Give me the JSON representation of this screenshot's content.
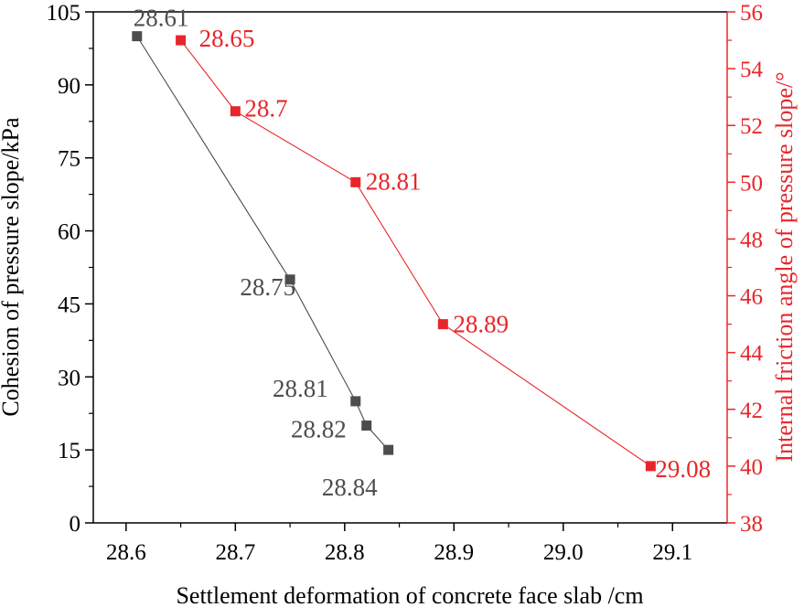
{
  "chart_data": {
    "type": "line",
    "xlabel": "Settlement deformation of concrete face slab /cm",
    "ylabel_left": "Cohesion of pressure slope/kPa",
    "ylabel_right": "Internal friction angle of pressure slope/°",
    "xlim": [
      28.57,
      29.15
    ],
    "xticks": [
      "28.6",
      "28.7",
      "28.8",
      "28.9",
      "29.0",
      "29.1"
    ],
    "ylim_left": [
      0,
      105
    ],
    "yticks_left": [
      "0",
      "15",
      "30",
      "45",
      "60",
      "75",
      "90",
      "105"
    ],
    "ylim_right": [
      38,
      56
    ],
    "yticks_right": [
      "38",
      "40",
      "42",
      "44",
      "46",
      "48",
      "50",
      "52",
      "54",
      "56"
    ],
    "grid": false,
    "legend": "none",
    "series": [
      {
        "axis": "left",
        "color": "#4d4d4d",
        "marker": "square",
        "points": [
          {
            "x": 28.61,
            "y": 100,
            "label": "28.61"
          },
          {
            "x": 28.75,
            "y": 50,
            "label": "28.75"
          },
          {
            "x": 28.81,
            "y": 25,
            "label": "28.81"
          },
          {
            "x": 28.82,
            "y": 20,
            "label": "28.82"
          },
          {
            "x": 28.84,
            "y": 15,
            "label": "28.84"
          }
        ]
      },
      {
        "axis": "right",
        "color": "#e8262a",
        "marker": "square",
        "points": [
          {
            "x": 28.65,
            "y": 55,
            "label": "28.65"
          },
          {
            "x": 28.7,
            "y": 52.5,
            "label": "28.7"
          },
          {
            "x": 28.81,
            "y": 50,
            "label": "28.81"
          },
          {
            "x": 28.89,
            "y": 45,
            "label": "28.89"
          },
          {
            "x": 29.08,
            "y": 40,
            "label": "29.08"
          }
        ]
      }
    ],
    "colors": {
      "left_axis": "#000000",
      "right_axis": "#e8262a"
    }
  }
}
